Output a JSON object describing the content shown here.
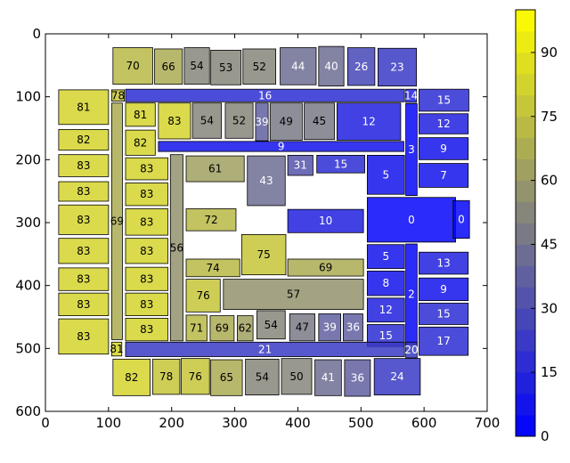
{
  "chart_data": {
    "type": "heatmap",
    "title": "",
    "xlabel": "",
    "ylabel": "",
    "xlim": [
      0,
      700
    ],
    "ylim": [
      600,
      0
    ],
    "y_inverted": true,
    "x_ticks": [
      "0",
      "100",
      "200",
      "300",
      "400",
      "500",
      "600",
      "700"
    ],
    "y_ticks": [
      "0",
      "100",
      "200",
      "300",
      "400",
      "500",
      "600"
    ],
    "colorbar": {
      "range": [
        0,
        100
      ],
      "ticks": [
        "0",
        "15",
        "30",
        "45",
        "60",
        "75",
        "90"
      ],
      "low_color": "#0000ff",
      "mid_color": "#808080",
      "high_color": "#ffff00",
      "levels": 20
    },
    "rects": [
      {
        "x": 107,
        "y": 22,
        "w": 63,
        "h": 58,
        "value": 70
      },
      {
        "x": 173,
        "y": 24,
        "w": 44,
        "h": 56,
        "value": 66
      },
      {
        "x": 220,
        "y": 22,
        "w": 40,
        "h": 58,
        "value": 54
      },
      {
        "x": 262,
        "y": 26,
        "w": 48,
        "h": 55,
        "value": 53
      },
      {
        "x": 313,
        "y": 24,
        "w": 52,
        "h": 56,
        "value": 52
      },
      {
        "x": 372,
        "y": 22,
        "w": 57,
        "h": 59,
        "value": 44
      },
      {
        "x": 433,
        "y": 20,
        "w": 40,
        "h": 63,
        "value": 40
      },
      {
        "x": 479,
        "y": 22,
        "w": 43,
        "h": 60,
        "value": 26
      },
      {
        "x": 527,
        "y": 23,
        "w": 61,
        "h": 60,
        "value": 23
      },
      {
        "x": 21,
        "y": 89,
        "w": 79,
        "h": 55,
        "value": 81
      },
      {
        "x": 105,
        "y": 89,
        "w": 20,
        "h": 18,
        "value": 78
      },
      {
        "x": 127,
        "y": 88,
        "w": 442,
        "h": 20,
        "value": 16
      },
      {
        "x": 571,
        "y": 88,
        "w": 17,
        "h": 21,
        "value": 14
      },
      {
        "x": 592,
        "y": 88,
        "w": 79,
        "h": 35,
        "value": 15
      },
      {
        "x": 105,
        "y": 110,
        "w": 17,
        "h": 376,
        "value": 69
      },
      {
        "x": 127,
        "y": 110,
        "w": 47,
        "h": 37,
        "value": 81
      },
      {
        "x": 179,
        "y": 110,
        "w": 51,
        "h": 57,
        "value": 83
      },
      {
        "x": 233,
        "y": 110,
        "w": 46,
        "h": 56,
        "value": 54
      },
      {
        "x": 285,
        "y": 110,
        "w": 44,
        "h": 56,
        "value": 52
      },
      {
        "x": 333,
        "y": 110,
        "w": 20,
        "h": 60,
        "value": 39
      },
      {
        "x": 356,
        "y": 110,
        "w": 51,
        "h": 59,
        "value": 49
      },
      {
        "x": 410,
        "y": 110,
        "w": 48,
        "h": 58,
        "value": 45
      },
      {
        "x": 462,
        "y": 110,
        "w": 101,
        "h": 59,
        "value": 12
      },
      {
        "x": 571,
        "y": 111,
        "w": 18,
        "h": 146,
        "value": 3
      },
      {
        "x": 592,
        "y": 127,
        "w": 78,
        "h": 32,
        "value": 12
      },
      {
        "x": 21,
        "y": 152,
        "w": 79,
        "h": 33,
        "value": 82
      },
      {
        "x": 127,
        "y": 153,
        "w": 47,
        "h": 40,
        "value": 82
      },
      {
        "x": 179,
        "y": 171,
        "w": 389,
        "h": 16,
        "value": 9
      },
      {
        "x": 592,
        "y": 165,
        "w": 78,
        "h": 35,
        "value": 9
      },
      {
        "x": 21,
        "y": 192,
        "w": 79,
        "h": 35,
        "value": 83
      },
      {
        "x": 127,
        "y": 197,
        "w": 67,
        "h": 35,
        "value": 83
      },
      {
        "x": 198,
        "y": 192,
        "w": 20,
        "h": 296,
        "value": 56
      },
      {
        "x": 223,
        "y": 194,
        "w": 92,
        "h": 41,
        "value": 61
      },
      {
        "x": 320,
        "y": 194,
        "w": 60,
        "h": 79,
        "value": 43
      },
      {
        "x": 384,
        "y": 193,
        "w": 40,
        "h": 32,
        "value": 31
      },
      {
        "x": 430,
        "y": 193,
        "w": 76,
        "h": 28,
        "value": 15
      },
      {
        "x": 510,
        "y": 193,
        "w": 59,
        "h": 62,
        "value": 5
      },
      {
        "x": 592,
        "y": 206,
        "w": 78,
        "h": 38,
        "value": 7
      },
      {
        "x": 21,
        "y": 235,
        "w": 79,
        "h": 31,
        "value": 83
      },
      {
        "x": 127,
        "y": 237,
        "w": 67,
        "h": 36,
        "value": 83
      },
      {
        "x": 21,
        "y": 272,
        "w": 79,
        "h": 47,
        "value": 83
      },
      {
        "x": 127,
        "y": 278,
        "w": 67,
        "h": 42,
        "value": 83
      },
      {
        "x": 223,
        "y": 278,
        "w": 79,
        "h": 35,
        "value": 72
      },
      {
        "x": 384,
        "y": 279,
        "w": 120,
        "h": 37,
        "value": 10
      },
      {
        "x": 510,
        "y": 260,
        "w": 140,
        "h": 71,
        "value": 0
      },
      {
        "x": 646,
        "y": 265,
        "w": 26,
        "h": 60,
        "value": 0
      },
      {
        "x": 21,
        "y": 325,
        "w": 79,
        "h": 40,
        "value": 83
      },
      {
        "x": 127,
        "y": 325,
        "w": 67,
        "h": 40,
        "value": 83
      },
      {
        "x": 311,
        "y": 319,
        "w": 70,
        "h": 64,
        "value": 75
      },
      {
        "x": 510,
        "y": 335,
        "w": 59,
        "h": 38,
        "value": 5
      },
      {
        "x": 571,
        "y": 334,
        "w": 18,
        "h": 160,
        "value": 2
      },
      {
        "x": 592,
        "y": 347,
        "w": 78,
        "h": 35,
        "value": 13
      },
      {
        "x": 223,
        "y": 358,
        "w": 85,
        "h": 28,
        "value": 74
      },
      {
        "x": 384,
        "y": 358,
        "w": 120,
        "h": 27,
        "value": 69
      },
      {
        "x": 21,
        "y": 372,
        "w": 79,
        "h": 36,
        "value": 83
      },
      {
        "x": 127,
        "y": 371,
        "w": 67,
        "h": 37,
        "value": 83
      },
      {
        "x": 223,
        "y": 390,
        "w": 54,
        "h": 52,
        "value": 76
      },
      {
        "x": 282,
        "y": 390,
        "w": 222,
        "h": 48,
        "value": 57
      },
      {
        "x": 510,
        "y": 377,
        "w": 59,
        "h": 39,
        "value": 8
      },
      {
        "x": 592,
        "y": 388,
        "w": 78,
        "h": 36,
        "value": 9
      },
      {
        "x": 21,
        "y": 412,
        "w": 79,
        "h": 36,
        "value": 83
      },
      {
        "x": 127,
        "y": 412,
        "w": 67,
        "h": 36,
        "value": 83
      },
      {
        "x": 510,
        "y": 420,
        "w": 59,
        "h": 38,
        "value": 12
      },
      {
        "x": 592,
        "y": 428,
        "w": 78,
        "h": 34,
        "value": 15
      },
      {
        "x": 21,
        "y": 453,
        "w": 79,
        "h": 56,
        "value": 83
      },
      {
        "x": 127,
        "y": 452,
        "w": 67,
        "h": 36,
        "value": 83
      },
      {
        "x": 223,
        "y": 447,
        "w": 33,
        "h": 41,
        "value": 71
      },
      {
        "x": 261,
        "y": 448,
        "w": 38,
        "h": 40,
        "value": 69
      },
      {
        "x": 304,
        "y": 448,
        "w": 25,
        "h": 40,
        "value": 62
      },
      {
        "x": 335,
        "y": 440,
        "w": 45,
        "h": 45,
        "value": 54
      },
      {
        "x": 387,
        "y": 445,
        "w": 40,
        "h": 43,
        "value": 47
      },
      {
        "x": 433,
        "y": 445,
        "w": 35,
        "h": 43,
        "value": 39
      },
      {
        "x": 472,
        "y": 445,
        "w": 31,
        "h": 43,
        "value": 36
      },
      {
        "x": 510,
        "y": 462,
        "w": 59,
        "h": 35,
        "value": 15
      },
      {
        "x": 592,
        "y": 466,
        "w": 78,
        "h": 45,
        "value": 17
      },
      {
        "x": 105,
        "y": 490,
        "w": 16,
        "h": 22,
        "value": 81
      },
      {
        "x": 127,
        "y": 490,
        "w": 442,
        "h": 23,
        "value": 21
      },
      {
        "x": 571,
        "y": 490,
        "w": 18,
        "h": 25,
        "value": 20
      },
      {
        "x": 107,
        "y": 517,
        "w": 59,
        "h": 58,
        "value": 82
      },
      {
        "x": 170,
        "y": 517,
        "w": 43,
        "h": 56,
        "value": 78
      },
      {
        "x": 215,
        "y": 516,
        "w": 45,
        "h": 57,
        "value": 76
      },
      {
        "x": 262,
        "y": 518,
        "w": 50,
        "h": 57,
        "value": 65
      },
      {
        "x": 317,
        "y": 517,
        "w": 53,
        "h": 57,
        "value": 54
      },
      {
        "x": 374,
        "y": 516,
        "w": 48,
        "h": 57,
        "value": 50
      },
      {
        "x": 427,
        "y": 518,
        "w": 42,
        "h": 57,
        "value": 41
      },
      {
        "x": 474,
        "y": 518,
        "w": 41,
        "h": 58,
        "value": 36
      },
      {
        "x": 521,
        "y": 516,
        "w": 73,
        "h": 58,
        "value": 24
      }
    ]
  }
}
